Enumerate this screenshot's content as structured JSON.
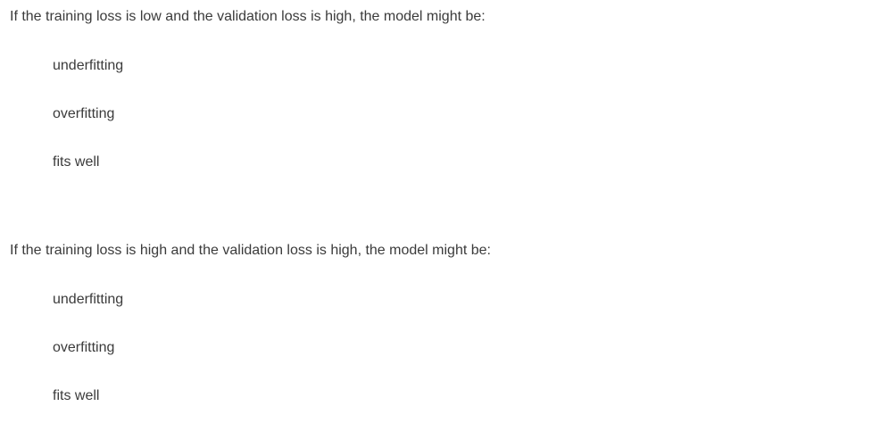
{
  "questions": [
    {
      "prompt": "If the training loss is low and the validation loss is high, the model might be:",
      "options": [
        "underfitting",
        "overfitting",
        "fits well"
      ]
    },
    {
      "prompt": "If the training loss is high and the validation loss is high, the model might be:",
      "options": [
        "underfitting",
        "overfitting",
        "fits well"
      ]
    }
  ]
}
